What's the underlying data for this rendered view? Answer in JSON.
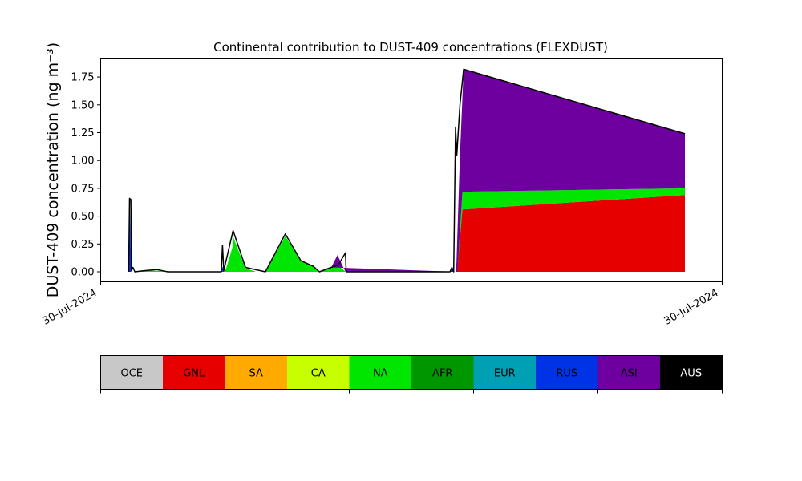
{
  "chart_data": {
    "type": "area",
    "title": "Continental contribution to DUST-409 concentrations (FLEXDUST)",
    "ylabel": "DUST-409 concentration (ng m⁻³)",
    "ylim": [
      -0.09,
      1.92
    ],
    "yticks": [
      "0.00",
      "0.25",
      "0.50",
      "0.75",
      "1.00",
      "1.25",
      "1.50",
      "1.75"
    ],
    "xtick_labels": [
      "30-Jul-2024",
      "30-Jul-2024"
    ],
    "x_range": [
      0,
      100
    ],
    "stacked": true,
    "series": [
      {
        "name": "OCE",
        "color": "#c8c8c8"
      },
      {
        "name": "GNL",
        "color": "#e60000"
      },
      {
        "name": "SA",
        "color": "#ffaa00"
      },
      {
        "name": "CA",
        "color": "#c8ff00"
      },
      {
        "name": "NA",
        "color": "#00e600"
      },
      {
        "name": "AFR",
        "color": "#009600"
      },
      {
        "name": "EUR",
        "color": "#00a0b4"
      },
      {
        "name": "RUS",
        "color": "#0032e6"
      },
      {
        "name": "ASI",
        "color": "#6e00a0"
      },
      {
        "name": "AUS",
        "color": "#000000"
      }
    ],
    "layers": [
      {
        "name": "GNL",
        "points": [
          [
            4.6,
            0
          ],
          [
            4.7,
            0.32
          ],
          [
            4.9,
            0
          ],
          [
            19.6,
            0
          ],
          [
            20.6,
            0
          ],
          [
            21.2,
            0.1
          ],
          [
            21.9,
            0.22
          ],
          [
            23.3,
            0
          ],
          [
            26.5,
            0
          ],
          [
            27.4,
            0
          ],
          [
            28.5,
            0.01
          ],
          [
            30.6,
            0
          ],
          [
            32.2,
            0.01
          ],
          [
            33.7,
            0
          ],
          [
            38.2,
            0
          ],
          [
            39.4,
            0
          ],
          [
            55.4,
            0
          ],
          [
            56.4,
            0
          ],
          [
            57.1,
            0
          ],
          [
            57.8,
            0.3
          ],
          [
            58.2,
            0.56
          ],
          [
            94,
            0.69
          ],
          [
            94,
            0
          ]
        ]
      },
      {
        "name": "CA",
        "points": [
          [
            27.4,
            0
          ],
          [
            29.8,
            0.13
          ],
          [
            31.9,
            0.02
          ],
          [
            33.7,
            0
          ],
          [
            26.5,
            0
          ]
        ]
      },
      {
        "name": "NA",
        "points": [
          [
            4.8,
            0
          ],
          [
            5.5,
            0
          ],
          [
            7,
            0.01
          ],
          [
            9,
            0.01
          ],
          [
            10.8,
            0
          ],
          [
            19.6,
            0
          ],
          [
            20.2,
            0.03
          ],
          [
            21.2,
            0.22
          ],
          [
            21.2,
            0.33
          ],
          [
            23.3,
            0.03
          ],
          [
            25,
            0
          ],
          [
            26.5,
            0
          ],
          [
            29.7,
            0.32
          ],
          [
            32.2,
            0.1
          ],
          [
            34.2,
            0.05
          ],
          [
            35.2,
            0
          ],
          [
            37.1,
            0.04
          ],
          [
            38.2,
            0.06
          ],
          [
            39.4,
            0
          ],
          [
            57.4,
            0
          ],
          [
            58.2,
            0.72
          ],
          [
            94,
            0.75
          ],
          [
            94,
            0.69
          ],
          [
            58.2,
            0.56
          ],
          [
            57.4,
            0
          ]
        ]
      },
      {
        "name": "ASI",
        "points": [
          [
            37.1,
            0.04
          ],
          [
            38.1,
            0.15
          ],
          [
            39.4,
            0
          ],
          [
            57.2,
            0
          ],
          [
            57.8,
            1.05
          ],
          [
            58.4,
            1.82
          ],
          [
            94,
            1.24
          ],
          [
            94,
            0.75
          ],
          [
            58.2,
            0.72
          ],
          [
            57.4,
            0
          ]
        ]
      },
      {
        "name": "RUS",
        "points": [
          [
            4.55,
            0
          ],
          [
            4.7,
            0.6
          ],
          [
            4.9,
            0
          ],
          [
            19.4,
            0
          ],
          [
            19.6,
            0.05
          ],
          [
            19.8,
            0
          ],
          [
            56.2,
            0
          ],
          [
            56.5,
            0.02
          ],
          [
            56.8,
            0
          ]
        ]
      }
    ],
    "outline": [
      [
        4.5,
        0
      ],
      [
        4.65,
        0.66
      ],
      [
        4.85,
        0.65
      ],
      [
        4.95,
        0.01
      ],
      [
        5.2,
        0.04
      ],
      [
        5.5,
        0
      ],
      [
        7,
        0.01
      ],
      [
        9,
        0.02
      ],
      [
        10.8,
        0
      ],
      [
        19.4,
        0
      ],
      [
        19.6,
        0.24
      ],
      [
        19.8,
        0.01
      ],
      [
        21.3,
        0.37
      ],
      [
        23.3,
        0.04
      ],
      [
        26.5,
        0
      ],
      [
        29.7,
        0.34
      ],
      [
        32.2,
        0.1
      ],
      [
        34.2,
        0.05
      ],
      [
        35.2,
        0
      ],
      [
        37.1,
        0.04
      ],
      [
        38.2,
        0.06
      ],
      [
        39.4,
        0.17
      ],
      [
        39.5,
        0
      ],
      [
        56.2,
        0
      ],
      [
        56.5,
        0.04
      ],
      [
        56.8,
        0
      ],
      [
        57.1,
        1.3
      ],
      [
        57.3,
        1.05
      ],
      [
        57.8,
        1.5
      ],
      [
        58.4,
        1.82
      ],
      [
        94,
        1.24
      ]
    ],
    "legend_position": "bottom",
    "grid": false
  }
}
